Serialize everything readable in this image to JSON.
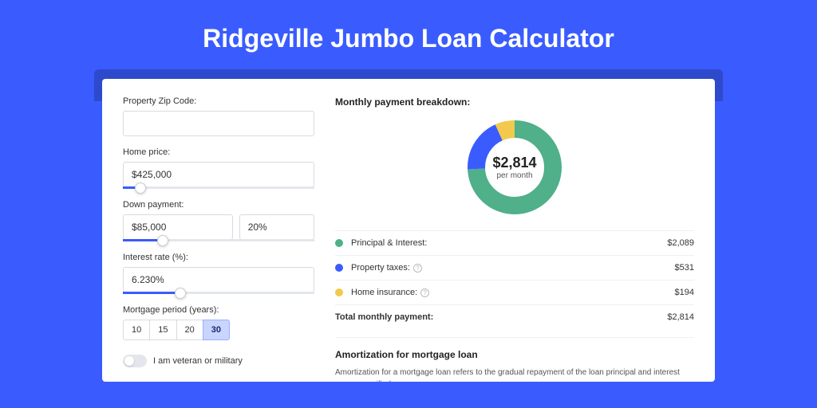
{
  "title": "Ridgeville Jumbo Loan Calculator",
  "colors": {
    "page_bg": "#3a5cff",
    "shadow": "#2e4acc",
    "principal": "#4fb08a",
    "taxes": "#3a5cff",
    "insurance": "#f2c94c"
  },
  "form": {
    "zip_label": "Property Zip Code:",
    "zip_value": "",
    "home_price_label": "Home price:",
    "home_price_value": "$425,000",
    "home_price_slider_pct": 9,
    "down_label": "Down payment:",
    "down_amount": "$85,000",
    "down_pct": "20%",
    "down_slider_pct": 21,
    "rate_label": "Interest rate (%):",
    "rate_value": "6.230%",
    "rate_slider_pct": 30,
    "period_label": "Mortgage period (years):",
    "periods": [
      "10",
      "15",
      "20",
      "30"
    ],
    "period_active": "30",
    "veteran_label": "I am veteran or military",
    "veteran_on": false
  },
  "breakdown": {
    "heading": "Monthly payment breakdown:",
    "total_display": "$2,814",
    "total_sub": "per month",
    "items": [
      {
        "label": "Principal & Interest:",
        "value": "$2,089",
        "color": "#4fb08a",
        "pct": 74.2,
        "has_info": false
      },
      {
        "label": "Property taxes:",
        "value": "$531",
        "color": "#3a5cff",
        "pct": 18.9,
        "has_info": true
      },
      {
        "label": "Home insurance:",
        "value": "$194",
        "color": "#f2c94c",
        "pct": 6.9,
        "has_info": true
      }
    ],
    "total_label": "Total monthly payment:",
    "total_value": "$2,814"
  },
  "amort": {
    "title": "Amortization for mortgage loan",
    "text": "Amortization for a mortgage loan refers to the gradual repayment of the loan principal and interest over a specified"
  },
  "donut": {
    "r": 48,
    "stroke": 22,
    "circumference": 301.59
  }
}
